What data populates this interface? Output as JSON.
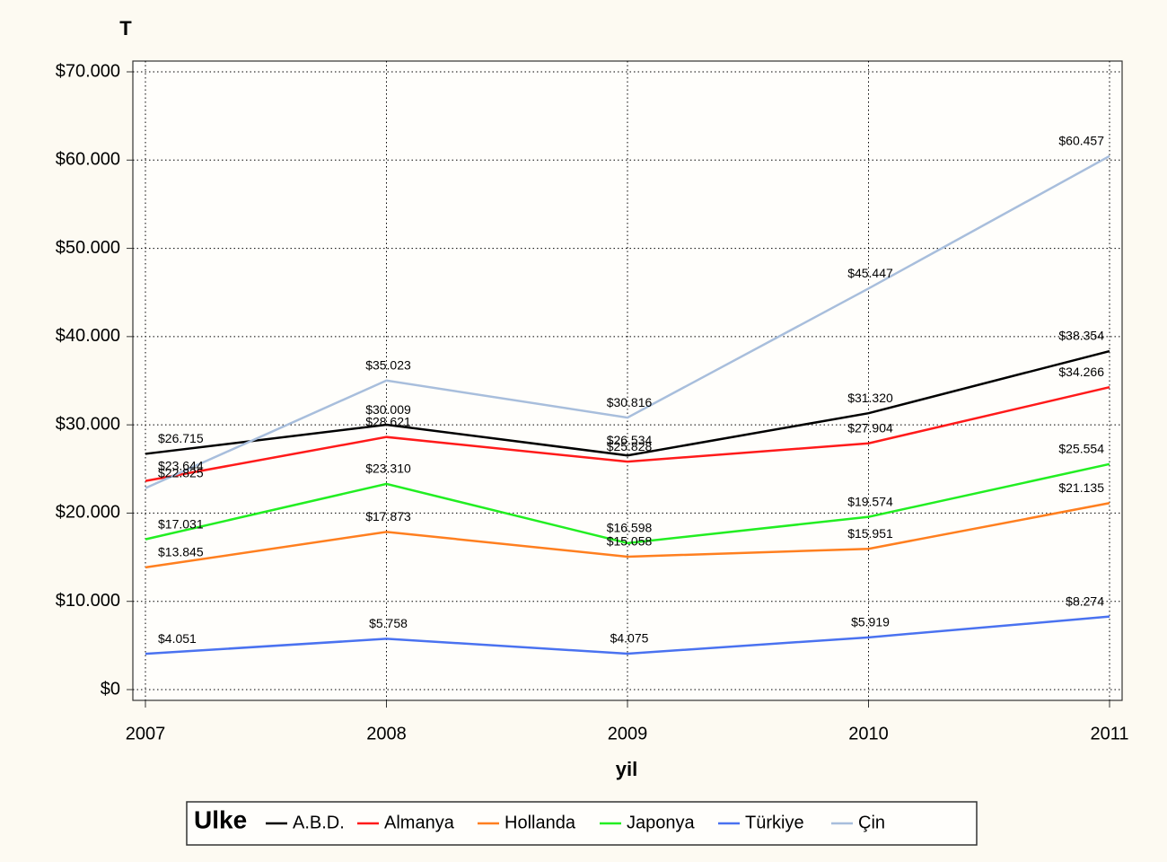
{
  "chart_data": {
    "type": "line",
    "title": "T",
    "xlabel": "yil",
    "legend_title": "Ulke",
    "x": [
      2007,
      2008,
      2009,
      2010,
      2011
    ],
    "xlim": [
      2007,
      2011
    ],
    "xticks": [
      2007,
      2008,
      2009,
      2010,
      2011
    ],
    "ylim": [
      0,
      70000
    ],
    "yticks": [
      {
        "value": 0,
        "label": "$0"
      },
      {
        "value": 10000,
        "label": "$10.000"
      },
      {
        "value": 20000,
        "label": "$20.000"
      },
      {
        "value": 30000,
        "label": "$30.000"
      },
      {
        "value": 40000,
        "label": "$40.000"
      },
      {
        "value": 50000,
        "label": "$50.000"
      },
      {
        "value": 60000,
        "label": "$60.000"
      },
      {
        "value": 70000,
        "label": "$70.000"
      }
    ],
    "grid": true,
    "legend": "bottom",
    "series": [
      {
        "name": "A.B.D.",
        "color": "#000000",
        "values": [
          26715,
          30009,
          26534,
          31320,
          38354
        ],
        "value_labels": [
          "$26.715",
          "$30.009",
          "$26.534",
          "$31.320",
          "$38.354"
        ]
      },
      {
        "name": "Almanya",
        "color": "#ff1a1a",
        "values": [
          23644,
          28621,
          25828,
          27904,
          34266
        ],
        "value_labels": [
          "$23.644",
          "$28.621",
          "$25.828",
          "$27.904",
          "$34.266"
        ]
      },
      {
        "name": "Hollanda",
        "color": "#ff7f1f",
        "values": [
          13845,
          17873,
          15058,
          15951,
          21135
        ],
        "value_labels": [
          "$13.845",
          "$17.873",
          "$15.058",
          "$15.951",
          "$21.135"
        ]
      },
      {
        "name": "Japonya",
        "color": "#22ee22",
        "values": [
          17031,
          23310,
          16598,
          19574,
          25554
        ],
        "value_labels": [
          "$17.031",
          "$23.310",
          "$16.598",
          "$19.574",
          "$25.554"
        ]
      },
      {
        "name": "Türkiye",
        "color": "#4a72f0",
        "values": [
          4051,
          5758,
          4075,
          5919,
          8274
        ],
        "value_labels": [
          "$4.051",
          "$5.758",
          "$4.075",
          "$5.919",
          "$8.274"
        ]
      },
      {
        "name": "Çin",
        "color": "#a8bedc",
        "values": [
          22825,
          35023,
          30816,
          45447,
          60457
        ],
        "value_labels": [
          "$22.825",
          "$35.023",
          "$30.816",
          "$45.447",
          "$60.457"
        ]
      }
    ]
  }
}
